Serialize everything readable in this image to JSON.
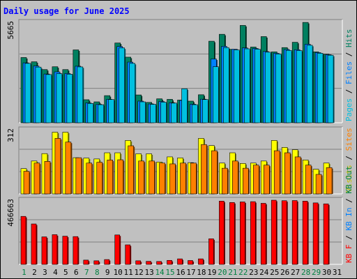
{
  "chart_data": {
    "type": "bar",
    "title": "Daily usage for June 2025",
    "categories": [
      "1",
      "2",
      "3",
      "4",
      "5",
      "6",
      "7",
      "8",
      "9",
      "10",
      "11",
      "12",
      "13",
      "14",
      "15",
      "16",
      "17",
      "18",
      "19",
      "20",
      "21",
      "22",
      "23",
      "24",
      "25",
      "26",
      "27",
      "28",
      "29",
      "30",
      "31"
    ],
    "category_colors": [
      "#008040",
      "#000000",
      "#000000",
      "#000000",
      "#000000",
      "#000000",
      "#008040",
      "#008040",
      "#000000",
      "#000000",
      "#000000",
      "#000000",
      "#000000",
      "#008040",
      "#008040",
      "#000000",
      "#000000",
      "#000000",
      "#000000",
      "#008040",
      "#008040",
      "#008040",
      "#000000",
      "#000000",
      "#000000",
      "#000000",
      "#000000",
      "#008040",
      "#008040",
      "#000000",
      "#000000"
    ],
    "panels": [
      {
        "ylabel_max": "5665",
        "ymax": 5665,
        "legend": [
          {
            "text": "Pages",
            "color": "#00c0e0"
          },
          {
            "text": " / ",
            "color": "#000000"
          },
          {
            "text": "Files",
            "color": "#0080ff"
          },
          {
            "text": " / ",
            "color": "#000000"
          },
          {
            "text": "Hits",
            "color": "#008060"
          }
        ],
        "series": [
          {
            "name": "Hits",
            "color": "#008060",
            "values": [
              3680,
              3440,
              3000,
              3160,
              3000,
              4110,
              1300,
              1180,
              1530,
              4500,
              3700,
              1570,
              1150,
              1350,
              1320,
              1280,
              1220,
              1580,
              4600,
              4990,
              4140,
              5490,
              4270,
              4860,
              4000,
              4240,
              4540,
              5660,
              4000,
              3870,
              null
            ]
          },
          {
            "name": "Files",
            "color": "#0080ff",
            "values": [
              3380,
              3200,
              2750,
              2870,
              2780,
              3190,
              1120,
              1040,
              1320,
              4300,
              3420,
              1220,
              1060,
              1200,
              1130,
              1260,
              1050,
              1330,
              3600,
              4310,
              4150,
              4220,
              4190,
              4020,
              3920,
              4130,
              4120,
              4430,
              3960,
              3840,
              null
            ]
          },
          {
            "name": "Pages",
            "color": "#00c0e0",
            "values": [
              3350,
              3140,
              2720,
              2770,
              2740,
              3150,
              1090,
              1020,
              1310,
              4220,
              3350,
              1180,
              1040,
              1160,
              1110,
              1920,
              1020,
              1310,
              3160,
              4240,
              4110,
              4170,
              4150,
              3980,
              3880,
              4080,
              4070,
              4370,
              3920,
              3810,
              null
            ]
          }
        ]
      },
      {
        "ylabel_max": "312",
        "ymax": 312,
        "legend": [
          {
            "text": "Visits",
            "color": "#c0c000"
          },
          {
            "text": " / ",
            "color": "#000000"
          },
          {
            "text": "Sites",
            "color": "#ff8000"
          }
        ],
        "series": [
          {
            "name": "Visits",
            "color": "#ffff00",
            "values": [
              123,
              160,
              196,
              300,
              300,
              176,
              174,
              170,
              200,
              200,
              260,
              195,
              195,
              155,
              180,
              175,
              152,
              270,
              235,
              150,
              200,
              148,
              150,
              160,
              260,
              226,
              215,
              165,
              120,
              150,
              null
            ]
          },
          {
            "name": "Sites",
            "color": "#ff8000",
            "values": [
              110,
              150,
              158,
              270,
              252,
              176,
              150,
              154,
              165,
              166,
              234,
              160,
              160,
              150,
              146,
              150,
              150,
              240,
              210,
              125,
              160,
              125,
              140,
              140,
              210,
              200,
              180,
              140,
              95,
              128,
              null
            ]
          }
        ]
      },
      {
        "ylabel_max": "466663",
        "ymax": 466663,
        "legend": [
          {
            "text": "KB F",
            "color": "#ff0000"
          },
          {
            "text": " / ",
            "color": "#000000"
          },
          {
            "text": "KB In",
            "color": "#0080ff"
          },
          {
            "text": " / ",
            "color": "#000000"
          },
          {
            "text": "KB Out",
            "color": "#008040"
          }
        ],
        "series": [
          {
            "name": "KB F",
            "color": "#ff0000",
            "values": [
              349000,
              294000,
              200000,
              216000,
              205000,
              202000,
              31000,
              26000,
              35000,
              214000,
              142000,
              26000,
              22000,
              21000,
              29000,
              40000,
              28000,
              40000,
              186000,
              460000,
              450000,
              454000,
              456000,
              444000,
              466663,
              463000,
              464000,
              460000,
              447000,
              440000,
              null
            ]
          }
        ]
      }
    ]
  }
}
